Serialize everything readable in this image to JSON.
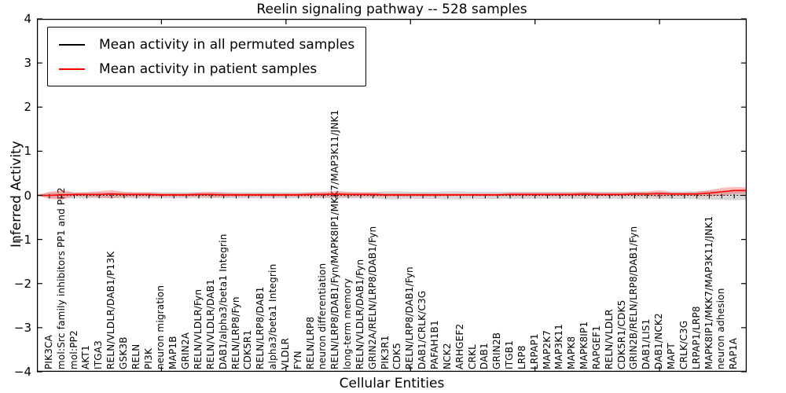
{
  "title": "Reelin signaling pathway -- 528 samples",
  "axes": {
    "ylabel": "Inferred Activity",
    "xlabel": "Cellular Entities",
    "ytick_labels": [
      "4",
      "3",
      "2",
      "1",
      "0",
      "−1",
      "−2",
      "−3",
      "−4"
    ],
    "ytick_values": [
      4,
      3,
      2,
      1,
      0,
      -1,
      -2,
      -3,
      -4
    ]
  },
  "legend": [
    {
      "label": "Mean activity in all permuted samples",
      "color": "#000000"
    },
    {
      "label": "Mean activity in patient samples",
      "color": "#ff0000"
    }
  ],
  "chart_data": {
    "type": "line",
    "title": "Reelin signaling pathway -- 528 samples",
    "xlabel": "Cellular Entities",
    "ylabel": "Inferred Activity",
    "ylim": [
      -4,
      4
    ],
    "grid": false,
    "legend_position": "upper left",
    "x_major_ticks_every": 10,
    "categories": [
      "PIK3CA",
      "mol:Src family inhibitors PP1 and PP2",
      "mol:PP2",
      "AKT1",
      "ITGA3",
      "RELN/VLDLR/DAB1/P13K",
      "GSK3B",
      "RELN",
      "PI3K",
      "neuron migration",
      "MAP1B",
      "GRIN2A",
      "RELN/VLDLR/Fyn",
      "RELN/VLDLR/DAB1",
      "DAB1/alpha3/beta1 Integrin",
      "RELN/LRP8/Fyn",
      "CDK5R1",
      "RELN/LRP8/DAB1",
      "alpha3/beta1 Integrin",
      "VLDLR",
      "FYN",
      "RELN/LRP8",
      "neuron differentiation",
      "RELN/LRP8/DAB1/Fyn/MAPK8IP1/MKK7/MAP3K11/JNK1",
      "long-term memory",
      "RELN/VLDLR/DAB1/Fyn",
      "GRIN2A/RELN/LRP8/DAB1/Fyn",
      "PIK3R1",
      "CDK5",
      "RELN/LRP8/DAB1/Fyn",
      "DAB1/CRLK/C3G",
      "PAFAH1B1",
      "NCK2",
      "ARHGEF2",
      "CRKL",
      "DAB1",
      "GRIN2B",
      "ITGB1",
      "LRP8",
      "LRPAP1",
      "MAP2K7",
      "MAP3K11",
      "MAPK8",
      "MAPK8IP1",
      "RAPGEF1",
      "RELN/VLDLR",
      "CDK5R1/CDK5",
      "GRIN2B/RELN/LRP8/DAB1/Fyn",
      "DAB1/LIS1",
      "DAB1/NCK2",
      "MAPT",
      "CRLK/C3G",
      "LRPAP1/LRP8",
      "MAPK8IP1/MKK7/MAP3K11/JNK1",
      "neuron adhesion",
      "RAP1A"
    ],
    "series": [
      {
        "name": "Mean activity in all permuted samples",
        "color": "#000000",
        "line_style": "dotted",
        "band_color": "rgba(110,110,110,0.28)",
        "values": [
          0,
          0,
          0,
          0,
          0,
          0,
          0,
          0,
          0,
          0,
          0,
          0,
          0,
          0,
          0,
          0,
          0,
          0,
          0,
          0,
          0,
          0,
          0,
          0,
          0,
          0,
          0,
          0,
          0,
          0,
          0,
          0,
          0,
          0,
          0,
          0,
          0,
          0,
          0,
          0,
          0,
          0,
          0,
          0,
          0,
          0,
          0,
          0,
          0,
          0,
          0,
          0,
          0,
          0,
          0,
          0
        ],
        "spread": [
          0.06,
          0.07,
          0.07,
          0.07,
          0.07,
          0.07,
          0.07,
          0.07,
          0.07,
          0.07,
          0.07,
          0.07,
          0.07,
          0.07,
          0.07,
          0.07,
          0.07,
          0.07,
          0.07,
          0.07,
          0.07,
          0.07,
          0.07,
          0.07,
          0.07,
          0.07,
          0.07,
          0.09,
          0.09,
          0.08,
          0.08,
          0.08,
          0.09,
          0.09,
          0.08,
          0.08,
          0.08,
          0.08,
          0.08,
          0.08,
          0.08,
          0.08,
          0.08,
          0.08,
          0.08,
          0.08,
          0.08,
          0.08,
          0.08,
          0.08,
          0.08,
          0.08,
          0.09,
          0.1,
          0.1,
          0.11
        ]
      },
      {
        "name": "Mean activity in patient samples",
        "color": "#ff0000",
        "line_style": "solid",
        "band_color": "rgba(255,40,40,0.30)",
        "values": [
          0.0,
          0.01,
          0.02,
          0.02,
          0.02,
          0.03,
          0.02,
          0.02,
          0.02,
          0.01,
          0.01,
          0.01,
          0.02,
          0.02,
          0.01,
          0.01,
          0.01,
          0.01,
          0.01,
          0.01,
          0.01,
          0.02,
          0.02,
          0.03,
          0.02,
          0.02,
          0.02,
          0.01,
          0.01,
          0.01,
          0.01,
          0.01,
          0.01,
          0.01,
          0.01,
          0.01,
          0.01,
          0.02,
          0.02,
          0.02,
          0.02,
          0.02,
          0.02,
          0.03,
          0.02,
          0.02,
          0.02,
          0.03,
          0.03,
          0.04,
          0.03,
          0.03,
          0.03,
          0.05,
          0.08,
          0.11
        ],
        "spread": [
          0.08,
          0.11,
          0.04,
          0.05,
          0.07,
          0.09,
          0.06,
          0.05,
          0.05,
          0.04,
          0.04,
          0.04,
          0.05,
          0.06,
          0.05,
          0.04,
          0.04,
          0.04,
          0.04,
          0.04,
          0.04,
          0.05,
          0.06,
          0.07,
          0.06,
          0.05,
          0.05,
          0.04,
          0.04,
          0.04,
          0.04,
          0.04,
          0.03,
          0.03,
          0.03,
          0.03,
          0.03,
          0.04,
          0.04,
          0.04,
          0.04,
          0.04,
          0.04,
          0.05,
          0.04,
          0.04,
          0.04,
          0.05,
          0.05,
          0.08,
          0.04,
          0.04,
          0.05,
          0.07,
          0.09,
          0.08
        ]
      }
    ]
  }
}
